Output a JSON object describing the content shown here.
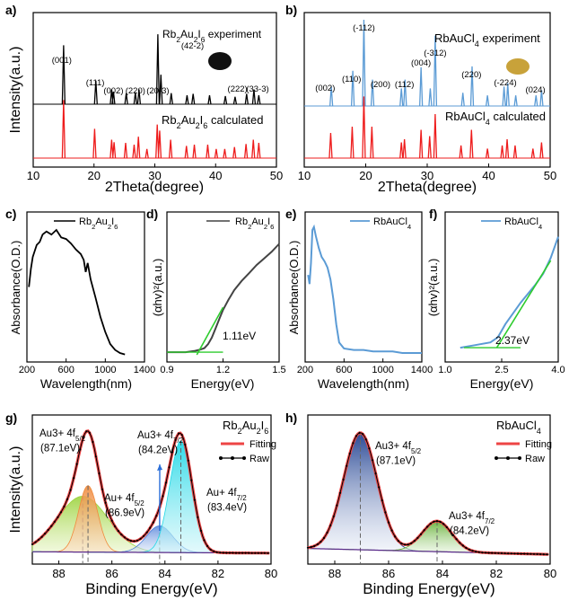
{
  "chart_data": [
    {
      "panel": "a)",
      "type": "line",
      "title": "",
      "xlabel": "2Theta(degree)",
      "ylabel": "Intensity(a.u.)",
      "xlim": [
        10,
        50
      ],
      "xticks": [
        "10",
        "20",
        "30",
        "40",
        "50"
      ],
      "series": [
        {
          "name": "Rb2Au2I6 experiment",
          "legend_main": "Rb",
          "legend_sub": [
            "2",
            "2",
            "6"
          ],
          "legend_parts": [
            "Rb",
            "2",
            "Au",
            "2",
            "I",
            "6",
            " experiment"
          ],
          "color": "#000000",
          "peaks": [
            [
              15.0,
              0.8
            ],
            [
              20.3,
              0.32
            ],
            [
              22.9,
              0.2
            ],
            [
              23.2,
              0.17
            ],
            [
              25.3,
              0.15
            ],
            [
              26.8,
              0.16
            ],
            [
              27.4,
              0.2
            ],
            [
              30.5,
              0.95
            ],
            [
              31.0,
              0.4
            ],
            [
              32.7,
              0.15
            ],
            [
              35.3,
              0.12
            ],
            [
              36.3,
              0.14
            ],
            [
              39.0,
              0.12
            ],
            [
              41.6,
              0.11
            ],
            [
              43.2,
              0.1
            ],
            [
              45.1,
              0.14
            ],
            [
              46.3,
              0.2
            ],
            [
              47.1,
              0.12
            ]
          ]
        },
        {
          "name": "Rb2Au2I6 calculated",
          "legend_parts": [
            "Rb",
            "2",
            "Au",
            "2",
            "I",
            "6",
            " calculated"
          ],
          "color": "#ee1c1c",
          "peaks": [
            [
              15.0,
              0.95
            ],
            [
              20.1,
              0.48
            ],
            [
              22.9,
              0.3
            ],
            [
              23.3,
              0.26
            ],
            [
              25.2,
              0.25
            ],
            [
              26.6,
              0.22
            ],
            [
              27.3,
              0.35
            ],
            [
              28.7,
              0.15
            ],
            [
              30.4,
              0.55
            ],
            [
              30.8,
              0.45
            ],
            [
              32.6,
              0.3
            ],
            [
              35.2,
              0.2
            ],
            [
              36.5,
              0.22
            ],
            [
              38.7,
              0.22
            ],
            [
              40.1,
              0.15
            ],
            [
              41.5,
              0.15
            ],
            [
              43.1,
              0.18
            ],
            [
              45.0,
              0.23
            ],
            [
              46.2,
              0.3
            ],
            [
              47.1,
              0.25
            ]
          ]
        }
      ],
      "annotations": [
        {
          "text": "(001)",
          "x": 14.7
        },
        {
          "text": "(111)",
          "x": 20.2
        },
        {
          "text": "(002)",
          "x": 23.2
        },
        {
          "text": "(220)",
          "x": 26.8
        },
        {
          "text": "(20-3)",
          "x": 30.5
        },
        {
          "text": "(42-2)",
          "x": 36.2
        },
        {
          "text": "(222)",
          "x": 43.6
        },
        {
          "text": "(33-3)",
          "x": 46.9
        }
      ]
    },
    {
      "panel": "b)",
      "type": "line",
      "title": "",
      "xlabel": "2Theta(degree)",
      "ylabel": "",
      "xlim": [
        10,
        50
      ],
      "xticks": [
        "10",
        "20",
        "30",
        "40",
        "50"
      ],
      "series": [
        {
          "name": "RbAuCl4 experiment",
          "legend_parts": [
            "RbAuCl",
            "4",
            " experiment"
          ],
          "color": "#5b9bd5",
          "peaks": [
            [
              14.4,
              0.22
            ],
            [
              17.9,
              0.4
            ],
            [
              19.7,
              0.98
            ],
            [
              21.1,
              0.3
            ],
            [
              25.8,
              0.2
            ],
            [
              26.4,
              0.3
            ],
            [
              29.0,
              0.44
            ],
            [
              30.5,
              0.2
            ],
            [
              31.3,
              0.8
            ],
            [
              35.8,
              0.15
            ],
            [
              37.3,
              0.45
            ],
            [
              39.8,
              0.12
            ],
            [
              42.5,
              0.22
            ],
            [
              43.1,
              0.26
            ],
            [
              44.4,
              0.12
            ],
            [
              47.7,
              0.12
            ],
            [
              48.6,
              0.18
            ]
          ]
        },
        {
          "name": "RbAuCl4 calculated",
          "legend_parts": [
            "RbAuCl",
            "4",
            " calculated"
          ],
          "color": "#ee1c1c",
          "peaks": [
            [
              14.3,
              0.4
            ],
            [
              17.8,
              0.5
            ],
            [
              19.7,
              0.98
            ],
            [
              21.0,
              0.5
            ],
            [
              25.8,
              0.25
            ],
            [
              26.3,
              0.3
            ],
            [
              29.0,
              0.45
            ],
            [
              30.4,
              0.35
            ],
            [
              31.3,
              0.7
            ],
            [
              35.5,
              0.2
            ],
            [
              37.2,
              0.45
            ],
            [
              39.8,
              0.15
            ],
            [
              42.2,
              0.2
            ],
            [
              43.0,
              0.3
            ],
            [
              44.3,
              0.2
            ],
            [
              47.2,
              0.15
            ],
            [
              48.6,
              0.25
            ]
          ]
        }
      ],
      "annotations": [
        {
          "text": "(002)",
          "x": 13.4
        },
        {
          "text": "(110)",
          "x": 17.7
        },
        {
          "text": "(-112)",
          "x": 19.7
        },
        {
          "text": "(200)",
          "x": 22.4
        },
        {
          "text": "(112)",
          "x": 26.3
        },
        {
          "text": "(004)",
          "x": 29.0
        },
        {
          "text": "(-312)",
          "x": 31.3
        },
        {
          "text": "(220)",
          "x": 37.2
        },
        {
          "text": "(-224)",
          "x": 42.7
        },
        {
          "text": "(024)",
          "x": 47.6
        }
      ]
    },
    {
      "panel": "c)",
      "type": "line",
      "title": "",
      "xlabel": "Wavelength(nm)",
      "ylabel": "Absorbance(O.D.)",
      "xlim": [
        200,
        1400
      ],
      "xticks": [
        "200",
        "600",
        "1000",
        "1400"
      ],
      "series": [
        {
          "name": "Rb2Au2I6",
          "legend_parts": [
            "Rb",
            "2",
            "Au",
            "2",
            "I",
            "6"
          ],
          "color": "#000000",
          "x": [
            220,
            240,
            260,
            280,
            300,
            330,
            360,
            400,
            450,
            500,
            550,
            600,
            650,
            700,
            750,
            780,
            800,
            820,
            850,
            900,
            950,
            1000,
            1050,
            1100,
            1150,
            1200
          ],
          "y": [
            0.5,
            0.62,
            0.7,
            0.74,
            0.78,
            0.8,
            0.85,
            0.87,
            0.85,
            0.88,
            0.83,
            0.82,
            0.79,
            0.75,
            0.72,
            0.68,
            0.6,
            0.66,
            0.55,
            0.43,
            0.3,
            0.2,
            0.12,
            0.08,
            0.06,
            0.05
          ]
        }
      ]
    },
    {
      "panel": "d)",
      "type": "line",
      "title": "",
      "xlabel": "Energy(eV)",
      "ylabel": "(αhv)²(a.u.)",
      "xlim": [
        0.9,
        1.5
      ],
      "xticks": [
        "0.9",
        "1.2",
        "1.5"
      ],
      "series": [
        {
          "name": "Rb2Au2I6",
          "legend_parts": [
            "Rb",
            "2",
            "Au",
            "2",
            "I",
            "6"
          ],
          "color": "#444444",
          "x": [
            0.9,
            0.95,
            1.0,
            1.05,
            1.08,
            1.1,
            1.12,
            1.14,
            1.16,
            1.18,
            1.2,
            1.23,
            1.26,
            1.3,
            1.34,
            1.38,
            1.42,
            1.46,
            1.5
          ],
          "y": [
            0.02,
            0.02,
            0.02,
            0.03,
            0.04,
            0.05,
            0.08,
            0.13,
            0.2,
            0.27,
            0.34,
            0.42,
            0.49,
            0.56,
            0.62,
            0.68,
            0.73,
            0.78,
            0.84
          ]
        },
        {
          "name": "",
          "color": "#2ecc2e",
          "x": [
            1.06,
            1.2
          ],
          "y": [
            0.0,
            0.36
          ]
        }
      ],
      "annotations": [
        {
          "text": "1.11eV",
          "x": 1.11
        }
      ]
    },
    {
      "panel": "e)",
      "type": "line",
      "title": "",
      "xlabel": "Wavelength(nm)",
      "ylabel": "Absorbance(O.D.)",
      "xlim": [
        200,
        1400
      ],
      "xticks": [
        "200",
        "600",
        "1000",
        "1400"
      ],
      "series": [
        {
          "name": "RbAuCl4",
          "legend_parts": [
            "RbAuCl",
            "4"
          ],
          "color": "#5b9bd5",
          "x": [
            230,
            245,
            260,
            275,
            290,
            310,
            340,
            370,
            400,
            430,
            460,
            490,
            520,
            550,
            600,
            700,
            800,
            900,
            1000,
            1100,
            1200,
            1300,
            1400
          ],
          "y": [
            0.58,
            0.52,
            0.66,
            0.88,
            0.9,
            0.84,
            0.76,
            0.7,
            0.67,
            0.63,
            0.55,
            0.42,
            0.25,
            0.13,
            0.09,
            0.08,
            0.08,
            0.07,
            0.07,
            0.07,
            0.06,
            0.06,
            0.06
          ]
        }
      ]
    },
    {
      "panel": "f)",
      "type": "line",
      "title": "",
      "xlabel": "Energy(eV)",
      "ylabel": "(αhv)²(a.u.)",
      "xlim": [
        1.0,
        4.0
      ],
      "xticks": [
        "1.0",
        "2.5",
        "4.0"
      ],
      "series": [
        {
          "name": "RbAuCl4",
          "legend_parts": [
            "RbAuCl",
            "4"
          ],
          "color": "#5b9bd5",
          "x": [
            1.4,
            1.8,
            2.2,
            2.4,
            2.6,
            2.8,
            3.0,
            3.2,
            3.4,
            3.6,
            3.8,
            4.0
          ],
          "y": [
            0.04,
            0.06,
            0.08,
            0.12,
            0.22,
            0.3,
            0.38,
            0.45,
            0.52,
            0.6,
            0.72,
            0.88
          ]
        },
        {
          "name": "",
          "color": "#2ecc2e",
          "x": [
            2.37,
            3.8
          ],
          "y": [
            0.04,
            0.7
          ]
        },
        {
          "name": "",
          "color": "#2ecc2e",
          "x": [
            1.5,
            3.0
          ],
          "y": [
            0.04,
            0.04
          ]
        }
      ],
      "annotations": [
        {
          "text": "2.37eV",
          "x": 2.37
        }
      ]
    },
    {
      "panel": "g)",
      "type": "line",
      "title": "Rb2Au2I6",
      "title_parts": [
        "Rb",
        "2",
        "Au",
        "2",
        "I",
        "6"
      ],
      "xlabel": "Binding Energy(eV)",
      "ylabel": "Intensity(a.u.)",
      "xlim": [
        89,
        80
      ],
      "xticks": [
        "88",
        "86",
        "84",
        "82",
        "80"
      ],
      "series": [
        {
          "name": "Fitting",
          "color": "#ee4444"
        },
        {
          "name": "Raw",
          "color": "#000000"
        }
      ],
      "components": [
        {
          "label": "Au3+ 4f5/2",
          "center": 87.1,
          "height": 0.42,
          "width": 0.95,
          "color": "#9bd23c"
        },
        {
          "label": "Au+ 4f5/2",
          "center": 86.9,
          "height": 0.5,
          "width": 0.36,
          "color": "#f08a3c"
        },
        {
          "label": "Au3+ 4f7/2",
          "center": 84.2,
          "height": 0.2,
          "width": 0.5,
          "color": "#4a7cd8"
        },
        {
          "label": "Au+ 4f7/2",
          "center": 83.4,
          "height": 0.84,
          "width": 0.42,
          "color": "#22d8e6"
        }
      ],
      "annotations": [
        {
          "text": "Au3+ 4f",
          "sub": "5/2",
          "value": "(87.1eV)",
          "color": "#2ca02c"
        },
        {
          "text": "Au+ 4f",
          "sub": "5/2",
          "value": "(86.9eV)",
          "color": "#f08a00"
        },
        {
          "text": "Au3+ 4f",
          "sub": "7/2",
          "value": "(84.2eV)",
          "color": "#2a6ed8"
        },
        {
          "text": "Au+ 4f",
          "sub": "7/2",
          "value": "(83.4eV)",
          "color": "#22d0e6"
        }
      ]
    },
    {
      "panel": "h)",
      "type": "line",
      "title": "RbAuCl4",
      "title_parts": [
        "RbAuCl",
        "4"
      ],
      "xlabel": "Binding Energy(eV)",
      "ylabel": "",
      "xlim": [
        89,
        80
      ],
      "xticks": [
        "88",
        "86",
        "84",
        "82",
        "80"
      ],
      "series": [
        {
          "name": "Fitting",
          "color": "#ee4444"
        },
        {
          "name": "Raw",
          "color": "#000000"
        }
      ],
      "components": [
        {
          "label": "Au3+ 4f5/2",
          "center": 87.05,
          "height": 0.88,
          "width": 0.62,
          "color": "#1f3f8f"
        },
        {
          "label": "Au3+ 4f7/2",
          "center": 84.2,
          "height": 0.23,
          "width": 0.55,
          "color": "#5fae2e"
        }
      ],
      "annotations": [
        {
          "text": "Au3+ 4f",
          "sub": "5/2",
          "value": "(87.1eV)",
          "color": "#3a5ea8"
        },
        {
          "text": "Au3+ 4f",
          "sub": "7/2",
          "value": "(84.2eV)",
          "color": "#4a9a1e"
        }
      ]
    }
  ]
}
